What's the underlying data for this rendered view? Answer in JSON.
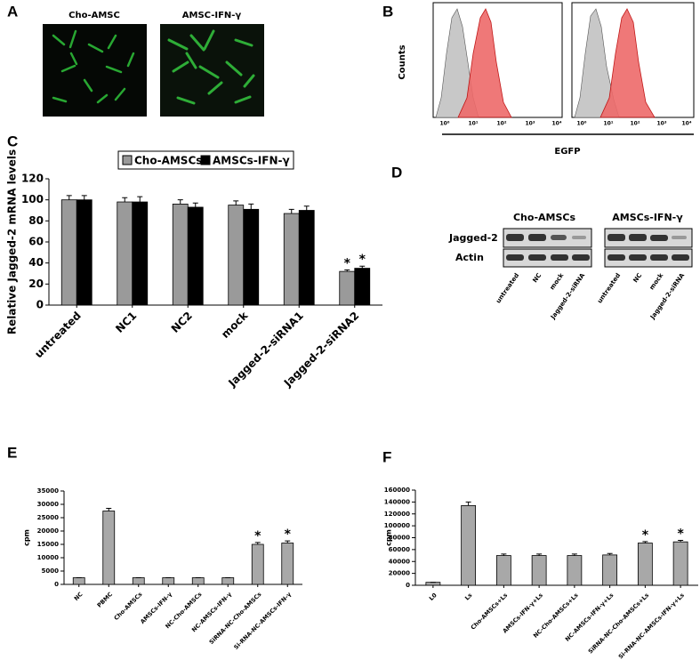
{
  "panel_a": {
    "label": "A",
    "images": [
      "Cho-AMSC",
      "AMSC-IFN-γ"
    ]
  },
  "panel_b": {
    "label": "B",
    "y_label": "Counts",
    "x_label": "EGFP",
    "tick_labels": [
      "10⁰",
      "10¹",
      "10²",
      "10³",
      "10⁴"
    ]
  },
  "chart_data": [
    {
      "type": "bar",
      "panel_label": "C",
      "y_label": "Relative Jagged-2 mRNA levels",
      "categories": [
        "untreated",
        "NC1",
        "NC2",
        "mock",
        "Jagged-2-siRNA1",
        "Jagged-2-siRNA2"
      ],
      "series": [
        {
          "name": "Cho-AMSCs",
          "color": "#9a9a9a",
          "values": [
            100,
            98,
            96,
            95,
            87,
            32
          ],
          "errors": [
            4,
            4,
            4,
            4,
            4,
            1.5
          ],
          "significance": [
            null,
            null,
            null,
            null,
            null,
            "*"
          ]
        },
        {
          "name": "AMSCs-IFN-γ",
          "color": "#000000",
          "values": [
            100,
            98,
            93,
            91,
            90,
            35
          ],
          "errors": [
            4,
            5,
            4,
            5,
            4,
            2
          ],
          "significance": [
            null,
            null,
            null,
            null,
            null,
            "*"
          ]
        }
      ],
      "ylim": [
        0,
        120
      ],
      "yticks": [
        0,
        20,
        40,
        60,
        80,
        100,
        120
      ],
      "legend": "top"
    },
    {
      "type": "bar",
      "panel_label": "E",
      "y_label": "cpm",
      "categories": [
        "NC",
        "PBMC",
        "Cho-AMSCs",
        "AMSCs-IFN-γ",
        "NC-Cho-AMSCs",
        "NC-AMSCs-IFN-γ",
        "SiRNA-NC-Cho-AMSCs",
        "Si-RNA-NC-AMSCs-IFN-γ"
      ],
      "values": [
        2500,
        27500,
        2500,
        2500,
        2500,
        2500,
        15000,
        15500
      ],
      "errors": [
        0,
        1000,
        0,
        0,
        0,
        0,
        700,
        800
      ],
      "significance": [
        null,
        null,
        null,
        null,
        null,
        null,
        "*",
        "*"
      ],
      "color": "#a8a8a8",
      "ylim": [
        0,
        35000
      ],
      "yticks": [
        0,
        5000,
        10000,
        15000,
        20000,
        25000,
        30000,
        35000
      ]
    },
    {
      "type": "bar",
      "panel_label": "F",
      "y_label": "cpm",
      "categories": [
        "L0",
        "Ls",
        "Cho-AMSCs+Ls",
        "AMSCs-IFN-γ+Ls",
        "NC-Cho-AMSCs+Ls",
        "NC-AMSCs-IFN-γ+Ls",
        "SiRNA-NC-Cho-AMSCs+Ls",
        "Si-RNA-NC-AMSCs-IFN-γ+Ls"
      ],
      "values": [
        5000,
        134000,
        50000,
        50000,
        50000,
        51000,
        71000,
        73000
      ],
      "errors": [
        0,
        6000,
        2500,
        2500,
        2500,
        2500,
        2500,
        2500
      ],
      "significance": [
        null,
        null,
        null,
        null,
        null,
        null,
        "*",
        "*"
      ],
      "color": "#a8a8a8",
      "ylim": [
        0,
        160000
      ],
      "yticks": [
        0,
        20000,
        40000,
        60000,
        80000,
        100000,
        120000,
        140000,
        160000
      ]
    }
  ],
  "panel_d": {
    "label": "D",
    "groups": [
      "Cho-AMSCs",
      "AMSCs-IFN-γ"
    ],
    "rows": [
      "Jagged-2",
      "Actin"
    ],
    "lanes": [
      "untreated",
      "NC",
      "mock",
      "Jagged-2-siRNA"
    ]
  }
}
